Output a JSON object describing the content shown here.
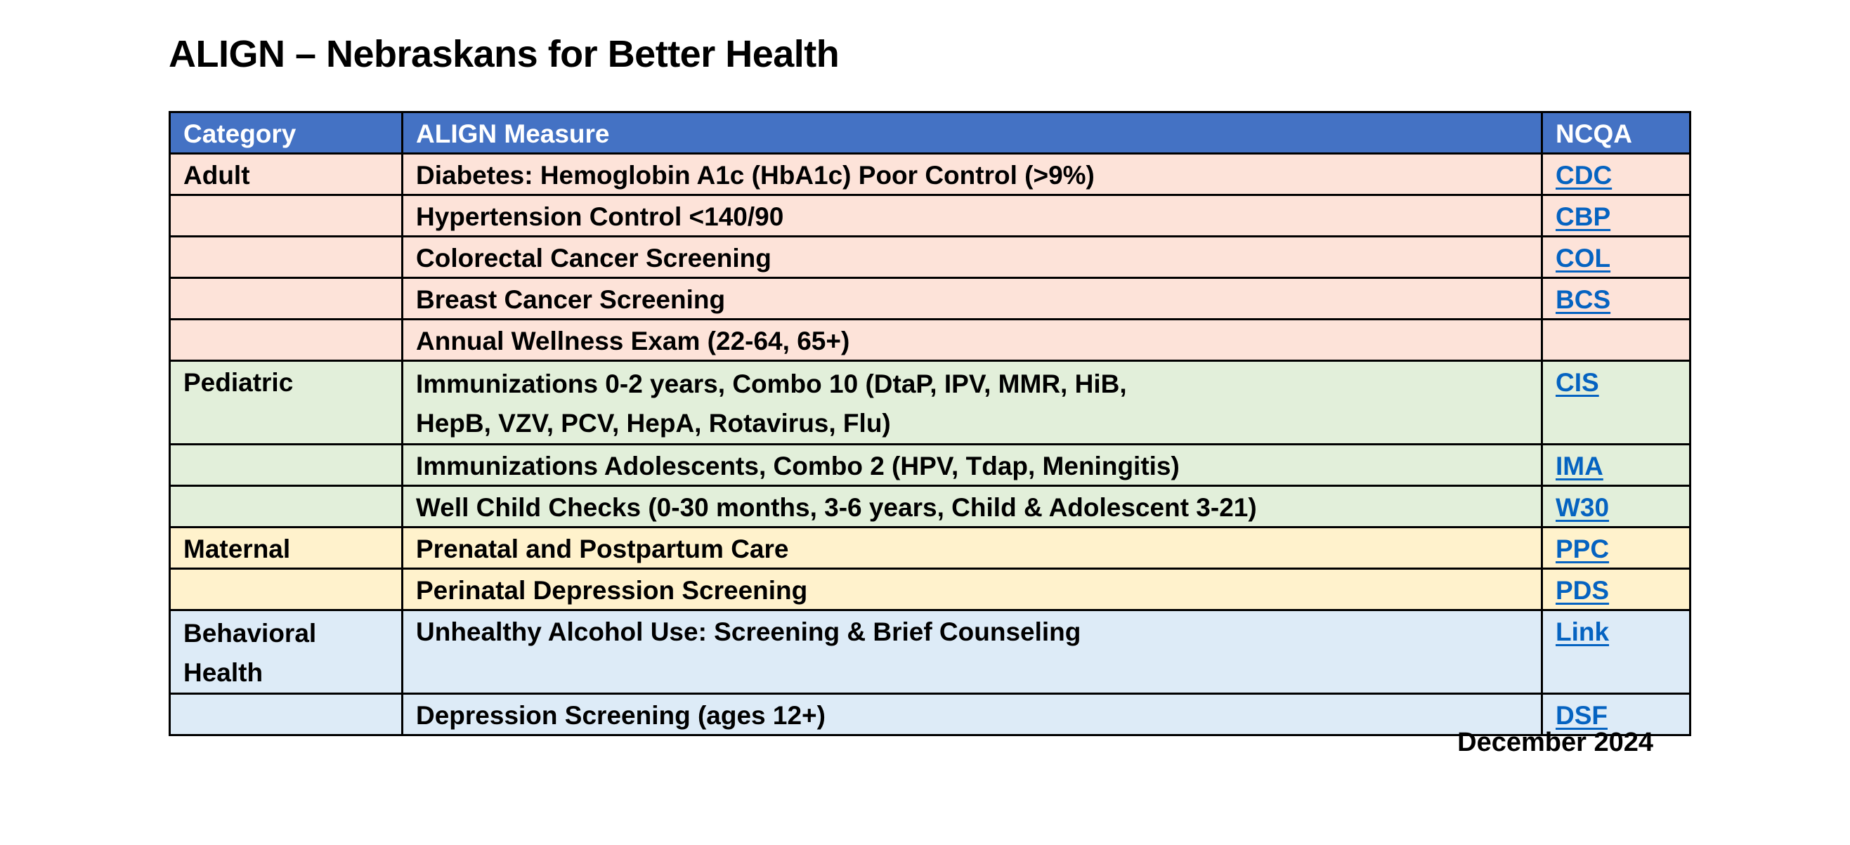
{
  "document": {
    "title": "ALIGN – Nebraskans for Better Health",
    "date": "December 2024"
  },
  "table": {
    "headers": {
      "category": "Category",
      "measure": "ALIGN Measure",
      "ncqa": "NCQA"
    },
    "rows": [
      {
        "category": "Adult",
        "measure": "Diabetes: Hemoglobin A1c (HbA1c) Poor Control (>9%)",
        "ncqa": "CDC"
      },
      {
        "category": "",
        "measure": "Hypertension Control <140/90",
        "ncqa": "CBP"
      },
      {
        "category": "",
        "measure": "Colorectal Cancer Screening",
        "ncqa": "COL"
      },
      {
        "category": "",
        "measure": "Breast Cancer Screening",
        "ncqa": "BCS"
      },
      {
        "category": "",
        "measure": "Annual Wellness Exam (22-64, 65+)",
        "ncqa": ""
      },
      {
        "category": "Pediatric",
        "measure_line1": "Immunizations 0-2 years, Combo 10 (DtaP, IPV, MMR, HiB,",
        "measure_line2": "HepB, VZV, PCV, HepA, Rotavirus, Flu)",
        "ncqa": "CIS"
      },
      {
        "category": "",
        "measure": "Immunizations Adolescents, Combo 2 (HPV, Tdap, Meningitis)",
        "ncqa": "IMA"
      },
      {
        "category": "",
        "measure": "Well Child Checks (0-30 months, 3-6 years, Child & Adolescent 3-21)",
        "ncqa": "W30"
      },
      {
        "category": "Maternal",
        "measure": "Prenatal and Postpartum Care",
        "ncqa": "PPC"
      },
      {
        "category": "",
        "measure": "Perinatal Depression Screening",
        "ncqa": "PDS"
      },
      {
        "category_line1": "Behavioral",
        "category_line2": "Health",
        "measure": "Unhealthy Alcohol Use: Screening & Brief Counseling",
        "ncqa": "Link"
      },
      {
        "category": "",
        "measure": "Depression Screening (ages 12+)",
        "ncqa": "DSF"
      }
    ]
  },
  "colors": {
    "header_bg": "#4472c4",
    "adult_bg": "#fde3d9",
    "pediatric_bg": "#e2efda",
    "maternal_bg": "#fff2cc",
    "behavioral_bg": "#ddebf7",
    "link": "#0563c1"
  }
}
